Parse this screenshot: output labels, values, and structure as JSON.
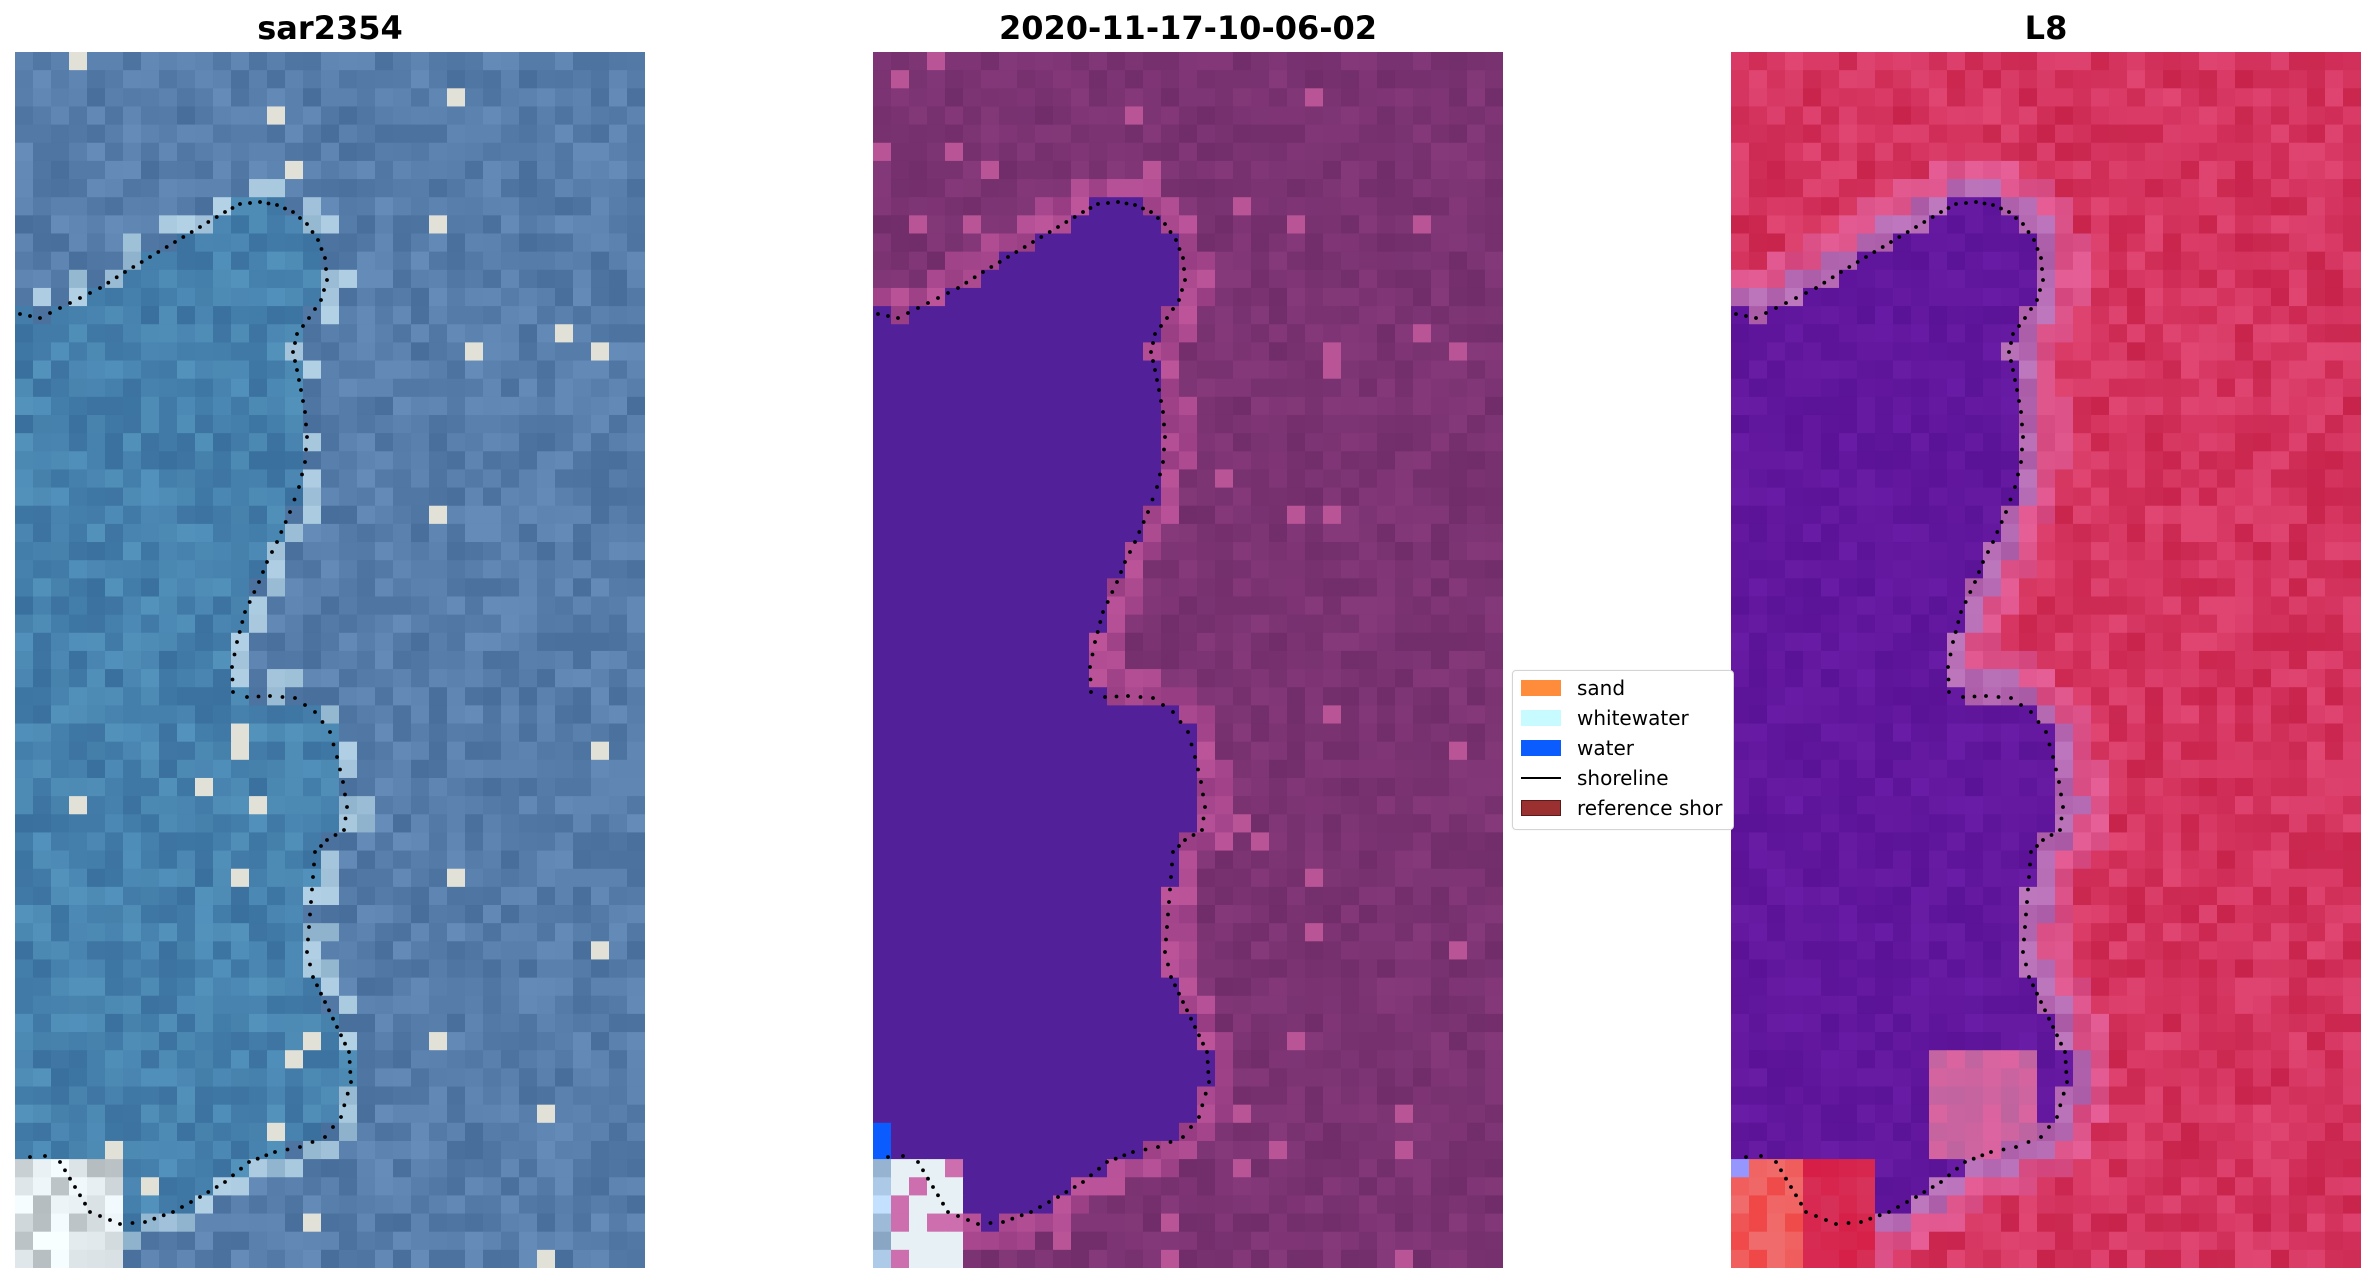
{
  "panels": [
    {
      "title": "sar2354",
      "kind": "rgb"
    },
    {
      "title": "2020-11-17-10-06-02",
      "kind": "classified"
    },
    {
      "title": "L8",
      "kind": "mndwi"
    }
  ],
  "legend": {
    "items": [
      {
        "label": "sand",
        "color": "#ff8c3a",
        "type": "patch"
      },
      {
        "label": "whitewater",
        "color": "#c8fbff",
        "type": "patch"
      },
      {
        "label": "water",
        "color": "#0a5cff",
        "type": "patch"
      },
      {
        "label": "shoreline",
        "color": "#000000",
        "type": "line"
      },
      {
        "label": "reference shor",
        "color": "#9b3030",
        "type": "patch"
      }
    ]
  },
  "colors": {
    "rgb_base": "#4f7aa6",
    "classified_land": "#7a3470",
    "classified_water": "#52219a",
    "mndwi_land": "#c5285a",
    "mndwi_water": "#5a1796"
  }
}
